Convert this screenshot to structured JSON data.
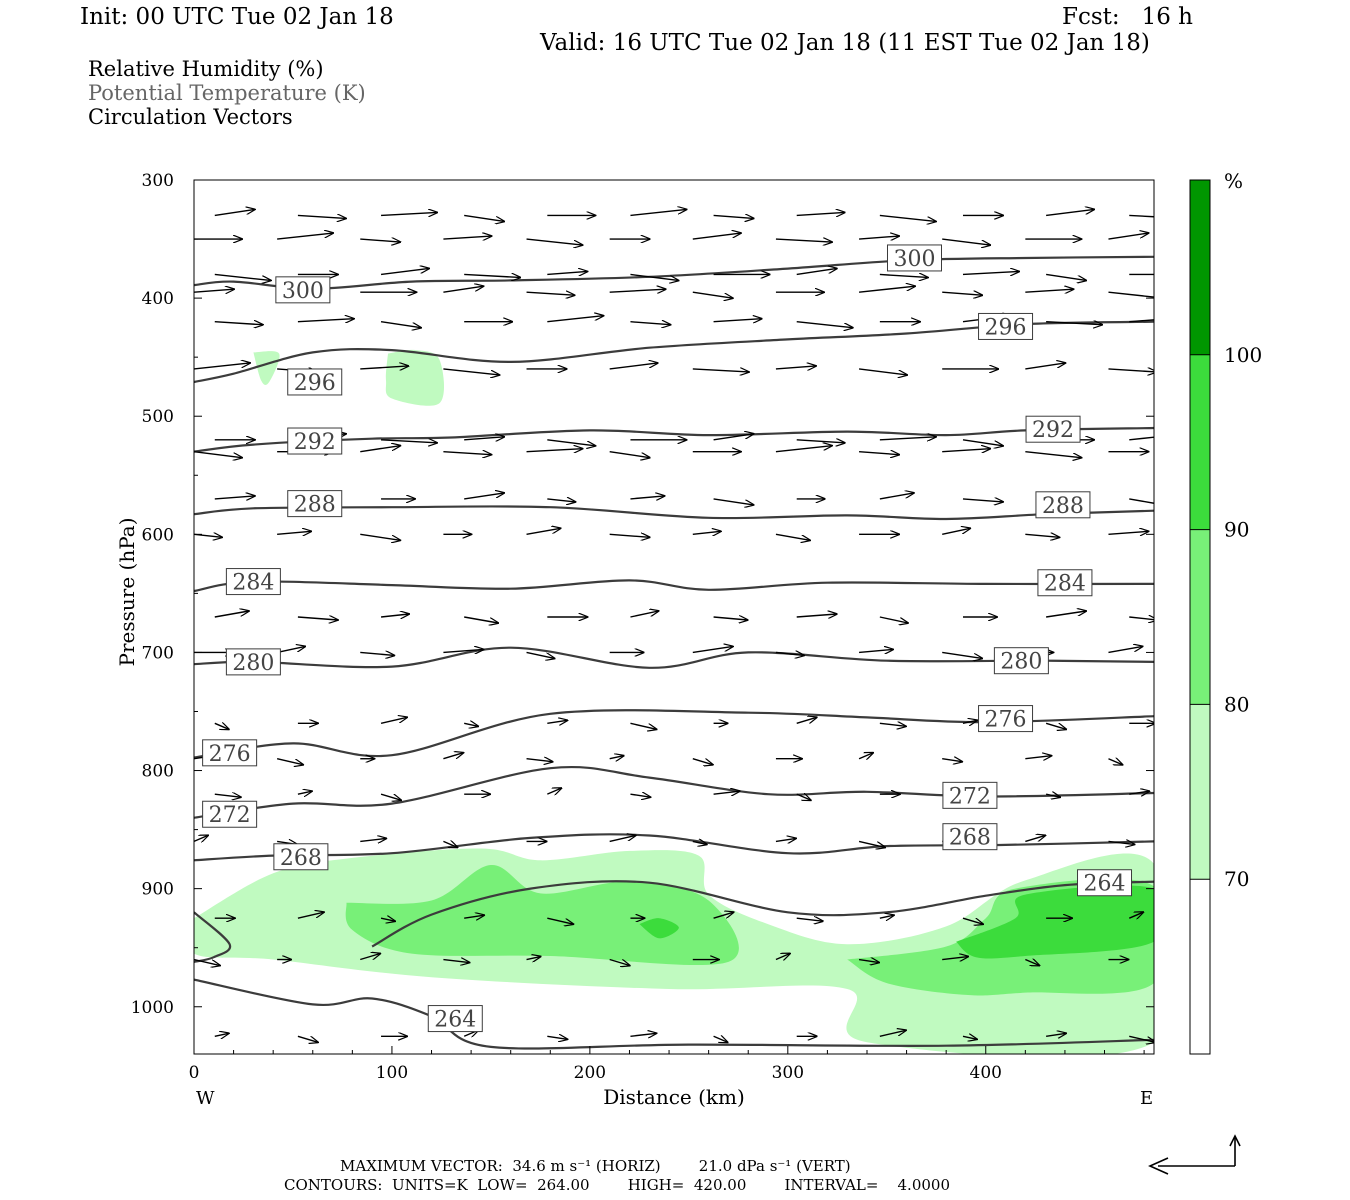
{
  "header": {
    "init": "Init: 00 UTC Tue 02 Jan 18",
    "fcst": "Fcst:   16 h",
    "valid": "Valid: 16 UTC Tue 02 Jan 18 (11 EST Tue 02 Jan 18)"
  },
  "legend": {
    "line1": "Relative Humidity (%)",
    "line2": "Potential Temperature (K)",
    "line3": "Circulation Vectors"
  },
  "chart_data": {
    "type": "cross-section",
    "xlabel": "Distance (km)",
    "ylabel": "Pressure (hPa)",
    "xlim": [
      0,
      485
    ],
    "ylim": [
      1040,
      300
    ],
    "x_ticks": [
      0,
      100,
      200,
      300,
      400
    ],
    "y_ticks": [
      300,
      400,
      500,
      600,
      700,
      800,
      900,
      1000
    ],
    "x_end_labels": {
      "left": "W",
      "right": "E"
    },
    "colorbar": {
      "unit": "%",
      "levels": [
        70,
        80,
        90,
        100
      ],
      "colors": [
        "#ffffff",
        "#c0fac0",
        "#78f078",
        "#3cdc3c",
        "#009600"
      ]
    },
    "theta_isentropes_K": [
      {
        "label": "300",
        "points": [
          [
            0,
            389
          ],
          [
            20,
            386
          ],
          [
            60,
            392
          ],
          [
            110,
            386
          ],
          [
            160,
            385
          ],
          [
            230,
            382
          ],
          [
            300,
            375
          ],
          [
            360,
            368
          ],
          [
            420,
            366
          ],
          [
            485,
            365
          ]
        ],
        "label_pos": [
          [
            55,
            393
          ],
          [
            364,
            366
          ]
        ]
      },
      {
        "label": "296",
        "points": [
          [
            0,
            471
          ],
          [
            20,
            464
          ],
          [
            60,
            446
          ],
          [
            100,
            444
          ],
          [
            160,
            454
          ],
          [
            230,
            442
          ],
          [
            300,
            435
          ],
          [
            360,
            430
          ],
          [
            420,
            422
          ],
          [
            485,
            420
          ]
        ],
        "label_pos": [
          [
            61,
            471
          ],
          [
            410,
            424
          ]
        ]
      },
      {
        "label": "292",
        "points": [
          [
            0,
            530
          ],
          [
            30,
            524
          ],
          [
            90,
            519
          ],
          [
            130,
            518
          ],
          [
            200,
            512
          ],
          [
            260,
            516
          ],
          [
            330,
            513
          ],
          [
            380,
            516
          ],
          [
            420,
            512
          ],
          [
            485,
            510
          ]
        ],
        "label_pos": [
          [
            61,
            521
          ],
          [
            434,
            511
          ]
        ]
      },
      {
        "label": "288",
        "points": [
          [
            0,
            583
          ],
          [
            30,
            578
          ],
          [
            100,
            577
          ],
          [
            180,
            577
          ],
          [
            260,
            586
          ],
          [
            330,
            584
          ],
          [
            380,
            587
          ],
          [
            430,
            583
          ],
          [
            485,
            580
          ]
        ],
        "label_pos": [
          [
            61,
            574
          ],
          [
            439,
            575
          ]
        ]
      },
      {
        "label": "284",
        "points": [
          [
            0,
            648
          ],
          [
            30,
            640
          ],
          [
            100,
            643
          ],
          [
            160,
            646
          ],
          [
            220,
            639
          ],
          [
            260,
            647
          ],
          [
            320,
            641
          ],
          [
            400,
            642
          ],
          [
            485,
            642
          ]
        ],
        "label_pos": [
          [
            30,
            640
          ],
          [
            440,
            641
          ]
        ]
      },
      {
        "label": "280",
        "points": [
          [
            0,
            710
          ],
          [
            30,
            708
          ],
          [
            100,
            712
          ],
          [
            160,
            696
          ],
          [
            230,
            713
          ],
          [
            280,
            700
          ],
          [
            350,
            707
          ],
          [
            430,
            707
          ],
          [
            485,
            708
          ]
        ],
        "label_pos": [
          [
            30,
            708
          ],
          [
            418,
            707
          ]
        ]
      },
      {
        "label": "276",
        "points": [
          [
            0,
            789
          ],
          [
            50,
            777
          ],
          [
            100,
            787
          ],
          [
            180,
            752
          ],
          [
            280,
            751
          ],
          [
            340,
            755
          ],
          [
            400,
            759
          ],
          [
            485,
            754
          ]
        ],
        "label_pos": [
          [
            18,
            785
          ],
          [
            410,
            756
          ]
        ]
      },
      {
        "label": "272",
        "points": [
          [
            0,
            840
          ],
          [
            50,
            828
          ],
          [
            100,
            828
          ],
          [
            180,
            798
          ],
          [
            230,
            806
          ],
          [
            290,
            820
          ],
          [
            340,
            818
          ],
          [
            400,
            822
          ],
          [
            485,
            819
          ]
        ],
        "label_pos": [
          [
            18,
            837
          ],
          [
            392,
            821
          ]
        ]
      },
      {
        "label": "268",
        "points": [
          [
            0,
            876
          ],
          [
            40,
            872
          ],
          [
            100,
            870
          ],
          [
            170,
            857
          ],
          [
            230,
            855
          ],
          [
            300,
            870
          ],
          [
            350,
            864
          ],
          [
            410,
            863
          ],
          [
            485,
            860
          ]
        ],
        "label_pos": [
          [
            54,
            873
          ],
          [
            392,
            856
          ]
        ]
      },
      {
        "label": "264",
        "points": [
          [
            0,
            977
          ],
          [
            60,
            998
          ],
          [
            90,
            993
          ],
          [
            120,
            1008
          ],
          [
            150,
            1034
          ],
          [
            250,
            1032
          ],
          [
            380,
            1033
          ],
          [
            485,
            1028
          ]
        ],
        "label_pos": [
          [
            132,
            1010
          ],
          [
            460,
            895
          ]
        ]
      },
      {
        "label": "264",
        "points": [
          [
            90,
            949
          ],
          [
            120,
            922
          ],
          [
            170,
            900
          ],
          [
            230,
            895
          ],
          [
            300,
            920
          ],
          [
            350,
            920
          ],
          [
            400,
            906
          ],
          [
            440,
            897
          ],
          [
            485,
            894
          ]
        ],
        "label_pos": []
      },
      {
        "label": "264",
        "points": [
          [
            0,
            962
          ],
          [
            10,
            958
          ],
          [
            18,
            947
          ],
          [
            0,
            920
          ]
        ],
        "label_pos": []
      }
    ],
    "theta_label_positions_units": "[km, hPa]",
    "rh_regions_percent": [
      {
        "level": 70,
        "points": [
          [
            0,
            925
          ],
          [
            40,
            887
          ],
          [
            80,
            874
          ],
          [
            145,
            866
          ],
          [
            175,
            876
          ],
          [
            220,
            868
          ],
          [
            255,
            872
          ],
          [
            260,
            905
          ],
          [
            290,
            930
          ],
          [
            330,
            947
          ],
          [
            380,
            932
          ],
          [
            420,
            893
          ],
          [
            485,
            879
          ],
          [
            485,
            1030
          ],
          [
            340,
            1030
          ],
          [
            330,
            985
          ],
          [
            240,
            985
          ],
          [
            120,
            975
          ],
          [
            40,
            960
          ],
          [
            0,
            955
          ]
        ]
      },
      {
        "level": 70,
        "points": [
          [
            30,
            446
          ],
          [
            43,
            447
          ],
          [
            38,
            471
          ],
          [
            34,
            470
          ]
        ]
      },
      {
        "level": 70,
        "points": [
          [
            98,
            447
          ],
          [
            112,
            444
          ],
          [
            124,
            452
          ],
          [
            124,
            489
          ],
          [
            100,
            485
          ],
          [
            97,
            470
          ]
        ]
      },
      {
        "level": 80,
        "points": [
          [
            77,
            912
          ],
          [
            120,
            910
          ],
          [
            150,
            880
          ],
          [
            175,
            904
          ],
          [
            220,
            894
          ],
          [
            260,
            910
          ],
          [
            270,
            962
          ],
          [
            180,
            957
          ],
          [
            110,
            955
          ],
          [
            80,
            935
          ]
        ]
      },
      {
        "level": 80,
        "points": [
          [
            330,
            960
          ],
          [
            380,
            949
          ],
          [
            400,
            925
          ],
          [
            415,
            900
          ],
          [
            485,
            898
          ],
          [
            485,
            980
          ],
          [
            420,
            988
          ],
          [
            390,
            990
          ],
          [
            350,
            980
          ]
        ]
      },
      {
        "level": 90,
        "points": [
          [
            225,
            930
          ],
          [
            235,
            925
          ],
          [
            245,
            933
          ],
          [
            235,
            942
          ]
        ]
      },
      {
        "level": 90,
        "points": [
          [
            385,
            945
          ],
          [
            415,
            925
          ],
          [
            420,
            905
          ],
          [
            485,
            900
          ],
          [
            485,
            945
          ],
          [
            420,
            957
          ],
          [
            395,
            958
          ]
        ]
      }
    ],
    "vectors_x_km": [
      0,
      42,
      84,
      126,
      168,
      210,
      252,
      294,
      336,
      378,
      420,
      462,
      485
    ],
    "vectors_p_hPa": [
      330,
      350,
      380,
      395,
      420,
      460,
      520,
      530,
      570,
      600,
      670,
      700,
      760,
      790,
      820,
      860,
      925,
      960,
      1025
    ],
    "vectors_description": "wind arrows point generally eastward; stronger aloft, weak near surface"
  },
  "footer": {
    "line1": "MAXIMUM VECTOR:  34.6 m s⁻¹ (HORIZ)        21.0 dPa s⁻¹ (VERT)",
    "line2": "CONTOURS:  UNITS=K  LOW=  264.00        HIGH=  420.00        INTERVAL=    4.0000"
  }
}
